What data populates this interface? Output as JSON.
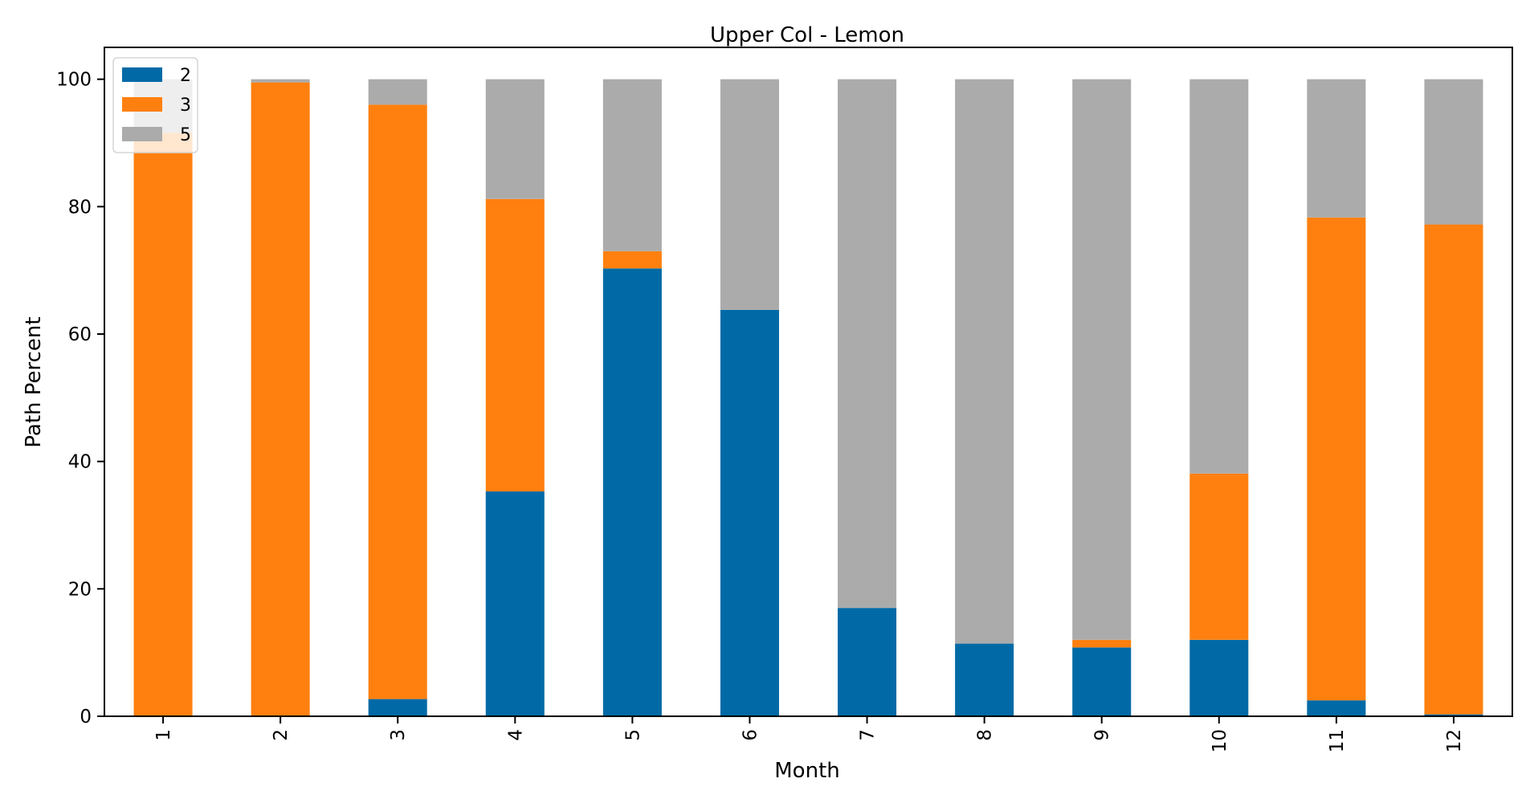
{
  "chart_data": {
    "type": "bar",
    "stacked": true,
    "title": "Upper Col - Lemon",
    "xlabel": "Month",
    "ylabel": "Path Percent",
    "ylim": [
      0,
      105
    ],
    "yticks": [
      0,
      20,
      40,
      60,
      80,
      100
    ],
    "grid": false,
    "legend_position": "top-left",
    "categories": [
      "1",
      "2",
      "3",
      "4",
      "5",
      "6",
      "7",
      "8",
      "9",
      "10",
      "11",
      "12"
    ],
    "series": [
      {
        "name": "2",
        "color": "#016aa6",
        "values": [
          0,
          0,
          2.7,
          35.3,
          70.3,
          63.8,
          17.0,
          11.4,
          10.8,
          12.0,
          2.5,
          0.3
        ]
      },
      {
        "name": "3",
        "color": "#ff800f",
        "values": [
          91.6,
          99.5,
          93.3,
          45.9,
          2.7,
          0,
          0,
          0,
          1.2,
          26.1,
          75.8,
          76.9
        ]
      },
      {
        "name": "5",
        "color": "#ababab",
        "values": [
          8.4,
          0.5,
          4.0,
          18.8,
          27.0,
          36.2,
          83.0,
          88.6,
          88.0,
          61.9,
          21.7,
          22.8
        ]
      }
    ]
  }
}
